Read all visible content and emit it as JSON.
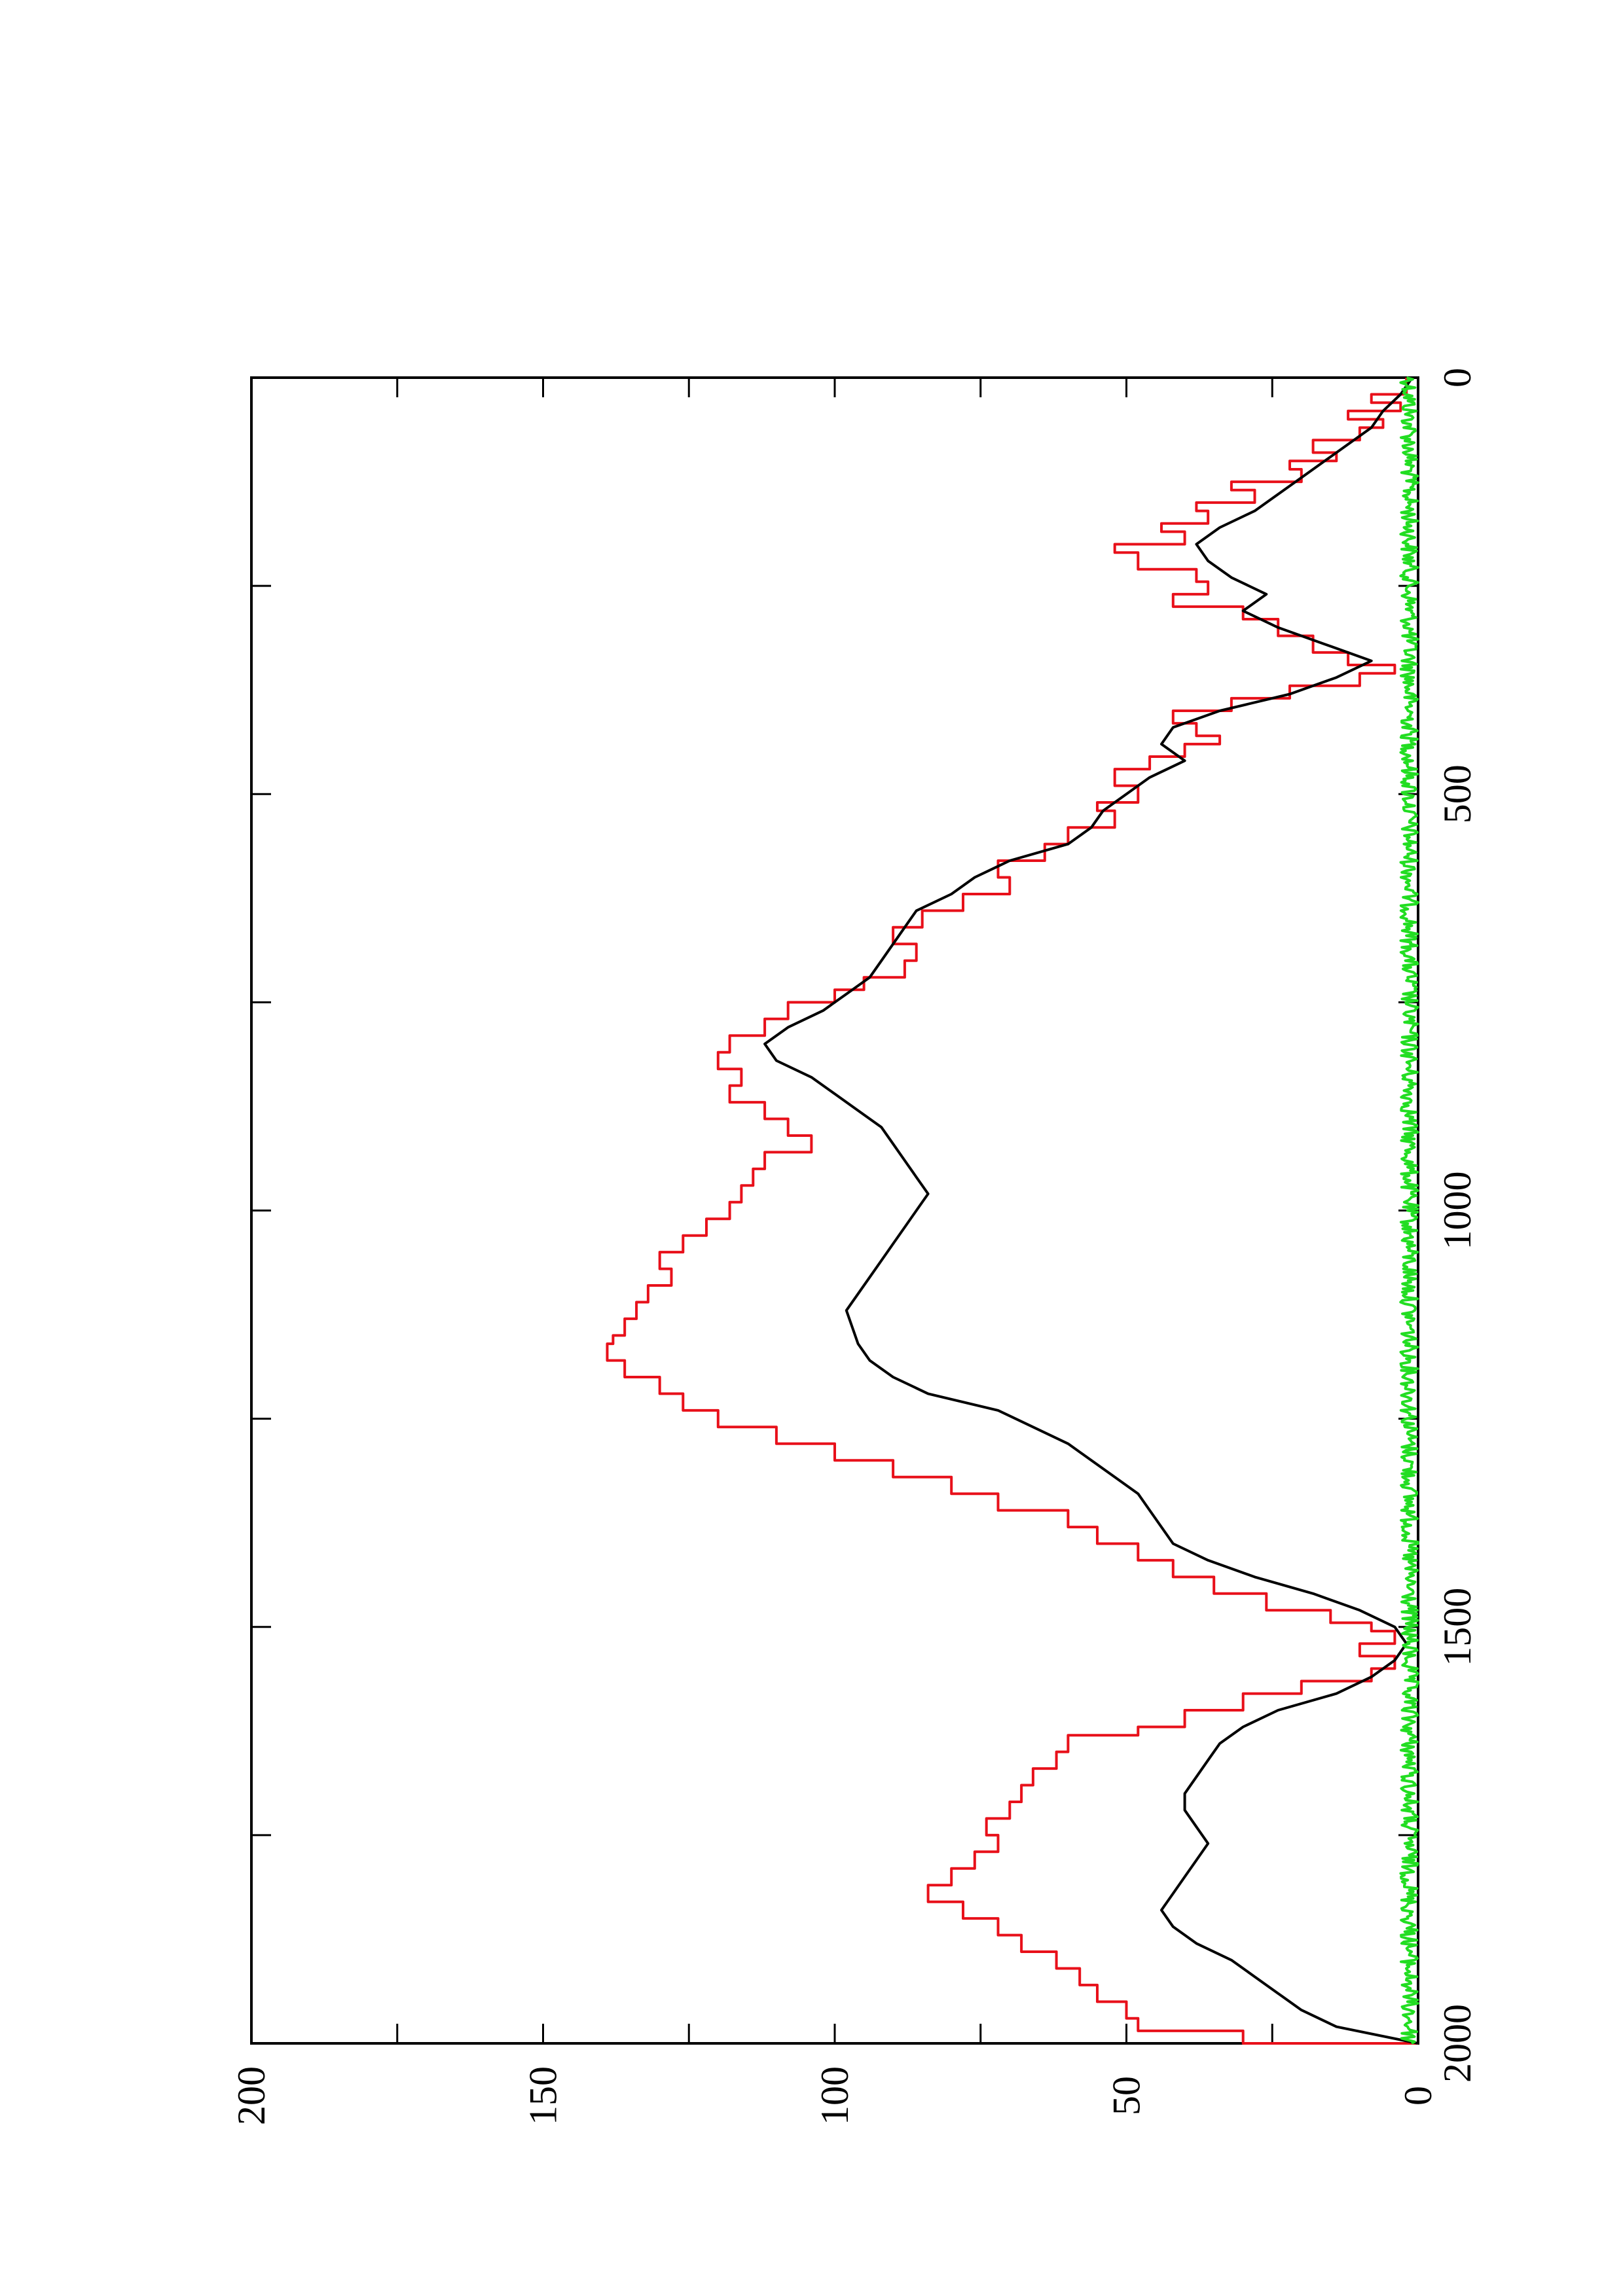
{
  "chart_data": {
    "type": "line",
    "orientation": "rotated-90-ccw",
    "title": "",
    "xlabel": "",
    "ylabel": "",
    "xlim": [
      0,
      2000
    ],
    "ylim": [
      0,
      200
    ],
    "x_ticks": [
      0,
      250,
      500,
      750,
      1000,
      1250,
      1500,
      1750,
      2000
    ],
    "x_tick_labels": [
      "0",
      "",
      "500",
      "",
      "1000",
      "",
      "1500",
      "",
      "2000"
    ],
    "y_ticks": [
      0,
      25,
      50,
      75,
      100,
      125,
      150,
      175,
      200
    ],
    "y_tick_labels": [
      "0",
      "",
      "50",
      "",
      "100",
      "",
      "150",
      "",
      "200"
    ],
    "grid": false,
    "legend": "none",
    "series": [
      {
        "color": "#e8101a",
        "style": "step",
        "x": [
          0,
          20,
          30,
          40,
          50,
          60,
          75,
          90,
          100,
          110,
          125,
          135,
          150,
          160,
          175,
          185,
          200,
          210,
          230,
          245,
          260,
          275,
          290,
          310,
          330,
          345,
          355,
          370,
          385,
          400,
          415,
          430,
          440,
          455,
          470,
          490,
          510,
          520,
          540,
          560,
          580,
          600,
          620,
          640,
          660,
          680,
          700,
          720,
          735,
          750,
          770,
          790,
          810,
          830,
          850,
          870,
          890,
          910,
          930,
          950,
          970,
          990,
          1010,
          1030,
          1050,
          1070,
          1090,
          1110,
          1130,
          1150,
          1160,
          1180,
          1200,
          1220,
          1240,
          1260,
          1280,
          1300,
          1320,
          1340,
          1360,
          1380,
          1400,
          1420,
          1440,
          1460,
          1480,
          1495,
          1505,
          1520,
          1535,
          1550,
          1565,
          1580,
          1600,
          1620,
          1630,
          1650,
          1670,
          1690,
          1710,
          1730,
          1750,
          1770,
          1790,
          1810,
          1830,
          1850,
          1870,
          1890,
          1910,
          1930,
          1950,
          1970,
          1985,
          2000
        ],
        "values": [
          2,
          8,
          3,
          12,
          6,
          10,
          18,
          14,
          22,
          20,
          32,
          28,
          38,
          36,
          44,
          40,
          52,
          48,
          38,
          36,
          42,
          30,
          24,
          18,
          12,
          4,
          10,
          22,
          32,
          42,
          38,
          34,
          40,
          46,
          52,
          48,
          55,
          52,
          60,
          64,
          72,
          70,
          78,
          85,
          90,
          86,
          88,
          95,
          100,
          108,
          112,
          118,
          120,
          116,
          118,
          112,
          108,
          104,
          112,
          114,
          116,
          118,
          122,
          126,
          130,
          128,
          132,
          134,
          136,
          138,
          139,
          136,
          130,
          126,
          120,
          110,
          100,
          90,
          80,
          72,
          60,
          55,
          48,
          42,
          35,
          26,
          15,
          8,
          4,
          10,
          4,
          8,
          20,
          30,
          40,
          48,
          60,
          62,
          66,
          68,
          70,
          74,
          72,
          76,
          80,
          84,
          78,
          72,
          68,
          62,
          58,
          55,
          50,
          48,
          30,
          0
        ]
      },
      {
        "color": "#000000",
        "style": "line",
        "x": [
          0,
          20,
          40,
          60,
          80,
          100,
          120,
          140,
          160,
          180,
          200,
          220,
          240,
          260,
          280,
          300,
          320,
          340,
          360,
          380,
          400,
          420,
          440,
          460,
          480,
          500,
          520,
          540,
          560,
          580,
          600,
          620,
          640,
          660,
          680,
          700,
          720,
          740,
          760,
          780,
          800,
          820,
          840,
          860,
          880,
          900,
          920,
          940,
          960,
          980,
          1000,
          1020,
          1040,
          1060,
          1080,
          1100,
          1120,
          1140,
          1160,
          1180,
          1200,
          1220,
          1240,
          1260,
          1280,
          1300,
          1320,
          1340,
          1360,
          1380,
          1400,
          1420,
          1440,
          1460,
          1480,
          1500,
          1520,
          1540,
          1560,
          1580,
          1600,
          1620,
          1640,
          1660,
          1680,
          1700,
          1720,
          1740,
          1760,
          1780,
          1800,
          1820,
          1840,
          1860,
          1880,
          1900,
          1920,
          1940,
          1960,
          1980,
          2000
        ],
        "values": [
          1,
          3,
          6,
          8,
          12,
          16,
          20,
          24,
          28,
          34,
          38,
          36,
          32,
          26,
          30,
          24,
          16,
          8,
          14,
          22,
          34,
          42,
          44,
          40,
          46,
          50,
          54,
          56,
          60,
          70,
          76,
          80,
          86,
          88,
          90,
          92,
          94,
          98,
          102,
          108,
          112,
          110,
          104,
          100,
          96,
          92,
          90,
          88,
          86,
          84,
          86,
          88,
          90,
          92,
          94,
          96,
          98,
          97,
          96,
          94,
          90,
          84,
          72,
          66,
          60,
          56,
          52,
          48,
          46,
          44,
          42,
          36,
          28,
          18,
          10,
          4,
          2,
          4,
          8,
          14,
          24,
          30,
          34,
          36,
          38,
          40,
          40,
          38,
          36,
          38,
          40,
          42,
          44,
          42,
          38,
          32,
          28,
          24,
          20,
          14,
          0
        ]
      },
      {
        "color": "#22dd22",
        "style": "noise",
        "baseline": 1.5,
        "amplitude": 1.5
      }
    ]
  }
}
